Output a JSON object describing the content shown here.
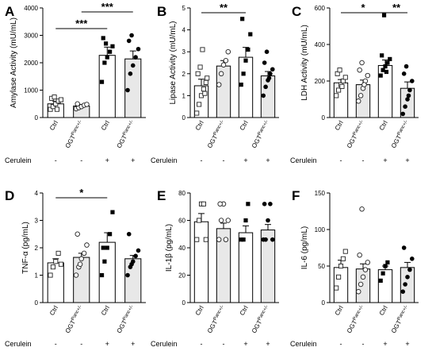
{
  "chart_data": [
    {
      "type": "bar",
      "panel": "A",
      "ylabel": "Amylase Activity (mU/mL)",
      "ylim": [
        0,
        4000
      ],
      "yticks": [
        "0",
        "1000",
        "2000",
        "3000",
        "4000"
      ],
      "categories": [
        "Ctrl",
        "OGT<sup>Panc+/-</sup>",
        "Ctrl",
        "OGT<sup>Panc+/-</sup>"
      ],
      "cerulein": [
        "-",
        "-",
        "+",
        "+"
      ],
      "values": [
        500,
        420,
        2270,
        2140
      ],
      "errors": [
        90,
        60,
        300,
        290
      ],
      "points": [
        [
          300,
          400,
          500,
          600,
          650,
          700,
          750,
          300
        ],
        [
          320,
          360,
          400,
          450,
          480,
          500
        ],
        [
          1300,
          2000,
          2200,
          2400,
          2600,
          2900,
          2700
        ],
        [
          1000,
          1600,
          1900,
          2200,
          2500,
          2800,
          3000
        ]
      ],
      "significance": [
        {
          "from": 0,
          "to": 2,
          "label": "***"
        },
        {
          "from": 1,
          "to": 3,
          "label": "***"
        }
      ]
    },
    {
      "type": "bar",
      "panel": "B",
      "ylabel": "Lipase Activity (mU/mL)",
      "ylim": [
        0,
        5
      ],
      "yticks": [
        "0",
        "1",
        "2",
        "3",
        "4",
        "5"
      ],
      "categories": [
        "Ctrl",
        "OGT<sup>Panc+/-</sup>",
        "Ctrl",
        "OGT<sup>Panc+/-</sup>"
      ],
      "cerulein": [
        "-",
        "-",
        "+",
        "+"
      ],
      "values": [
        1.45,
        2.35,
        2.75,
        1.9
      ],
      "errors": [
        0.3,
        0.25,
        0.45,
        0.2
      ],
      "points": [
        [
          0.2,
          0.6,
          1.0,
          1.3,
          1.6,
          2.0,
          2.3,
          3.1,
          1.1,
          1.8
        ],
        [
          1.5,
          2.0,
          2.4,
          2.6,
          3.0
        ],
        [
          1.5,
          2.0,
          2.6,
          3.1,
          3.8,
          4.5
        ],
        [
          1.0,
          1.4,
          1.7,
          2.0,
          2.2,
          2.5,
          3.0,
          1.8
        ]
      ],
      "significance": [
        {
          "from": 0,
          "to": 2,
          "label": "**"
        }
      ]
    },
    {
      "type": "bar",
      "panel": "C",
      "ylabel": "LDH Activity (mU/mL)",
      "ylim": [
        0,
        600
      ],
      "yticks": [
        "0",
        "200",
        "400",
        "600"
      ],
      "categories": [
        "Ctrl",
        "OGT<sup>Panc+/-</sup>",
        "Ctrl",
        "OGT<sup>Panc+/-</sup>"
      ],
      "cerulein": [
        "-",
        "-",
        "+",
        "+"
      ],
      "values": [
        190,
        180,
        285,
        160
      ],
      "errors": [
        18,
        25,
        30,
        35
      ],
      "points": [
        [
          120,
          150,
          180,
          200,
          220,
          240,
          260,
          170
        ],
        [
          90,
          120,
          160,
          200,
          230,
          260,
          300,
          180
        ],
        [
          230,
          260,
          280,
          300,
          320,
          340,
          560,
          250
        ],
        [
          20,
          60,
          100,
          150,
          200,
          240,
          280,
          120
        ]
      ],
      "significance": [
        {
          "from": 0,
          "to": 2,
          "label": "*"
        },
        {
          "from": 2,
          "to": 3,
          "label": "**"
        }
      ]
    },
    {
      "type": "bar",
      "panel": "D",
      "ylabel": "TNF-α (pg/mL)",
      "ylim": [
        0,
        4
      ],
      "yticks": [
        "0",
        "1",
        "2",
        "3",
        "4"
      ],
      "categories": [
        "Ctrl",
        "OGT<sup>Panc+/-</sup>",
        "Ctrl",
        "OGT<sup>Panc+/-</sup>"
      ],
      "cerulein": [
        "-",
        "-",
        "+",
        "+"
      ],
      "values": [
        1.45,
        1.65,
        2.2,
        1.6
      ],
      "errors": [
        0.15,
        0.15,
        0.35,
        0.12
      ],
      "points": [
        [
          1.0,
          1.3,
          1.5,
          1.8,
          1.4
        ],
        [
          1.0,
          1.3,
          1.6,
          1.8,
          2.1,
          2.5,
          1.4
        ],
        [
          1.0,
          1.5,
          2.0,
          2.5,
          3.3,
          2.0
        ],
        [
          1.0,
          1.3,
          1.5,
          1.7,
          1.9,
          2.5,
          1.4
        ]
      ],
      "significance": [
        {
          "from": 0,
          "to": 2,
          "label": "*"
        }
      ]
    },
    {
      "type": "bar",
      "panel": "E",
      "ylabel": "IL-1β (pg/mL)",
      "ylim": [
        0,
        80
      ],
      "yticks": [
        "0",
        "20",
        "40",
        "60",
        "80"
      ],
      "categories": [
        "Ctrl",
        "OGT<sup>Panc+/-</sup>",
        "Ctrl",
        "OGT<sup>Panc+/-</sup>"
      ],
      "cerulein": [
        "-",
        "-",
        "+",
        "+"
      ],
      "values": [
        59,
        54,
        51,
        53
      ],
      "errors": [
        6,
        4,
        5,
        4
      ],
      "points": [
        [
          46,
          60,
          72,
          72,
          46
        ],
        [
          46,
          60,
          72,
          46,
          60,
          72
        ],
        [
          46,
          46,
          60,
          72
        ],
        [
          46,
          46,
          60,
          72,
          46,
          72
        ]
      ],
      "significance": []
    },
    {
      "type": "bar",
      "panel": "F",
      "ylabel": "IL-6 (pg/mL)",
      "ylim": [
        0,
        150
      ],
      "yticks": [
        "0",
        "50",
        "100",
        "150"
      ],
      "categories": [
        "Ctrl",
        "OGT<sup>Panc+/-</sup>",
        "Ctrl",
        "OGT<sup>Panc+/-</sup>"
      ],
      "cerulein": [
        "-",
        "-",
        "+",
        "+"
      ],
      "values": [
        48,
        46,
        45,
        48
      ],
      "errors": [
        10,
        7,
        5,
        7
      ],
      "points": [
        [
          20,
          35,
          50,
          60,
          70
        ],
        [
          15,
          25,
          35,
          45,
          55,
          65,
          128
        ],
        [
          30,
          40,
          50,
          55
        ],
        [
          15,
          25,
          35,
          45,
          60,
          75
        ]
      ],
      "significance": []
    }
  ],
  "row_label": "Cerulein"
}
